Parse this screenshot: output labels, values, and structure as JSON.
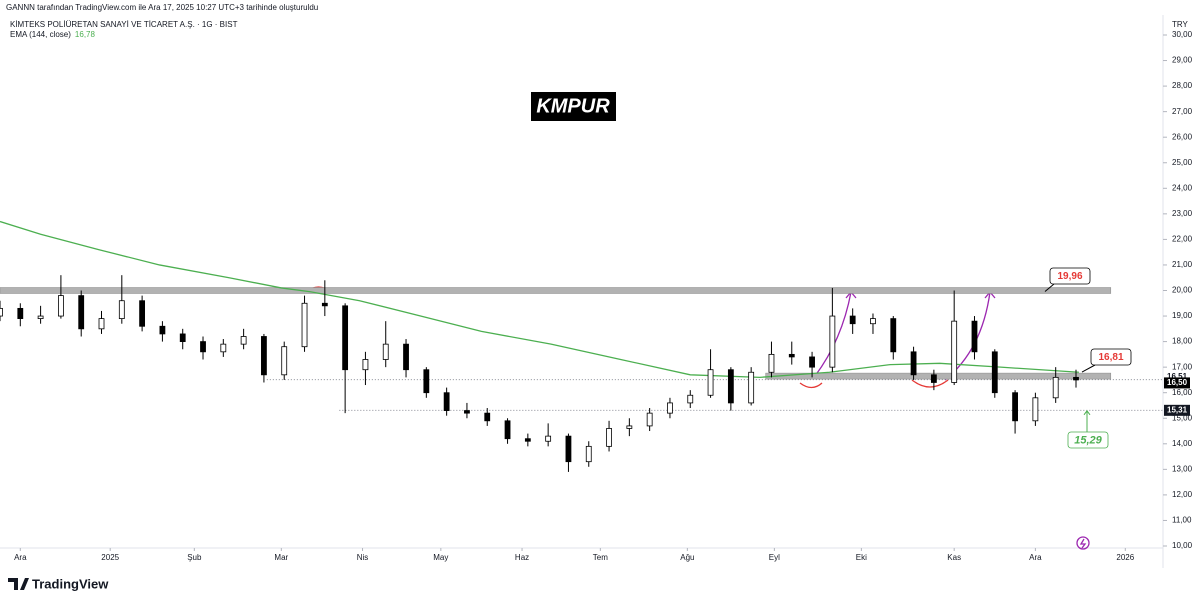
{
  "header": {
    "credit": "GANNN tarafından TradingView.com ile Ara 17, 2025 10:27 UTC+3 tarihinde oluşturuldu",
    "symbol": "KİMTEKS POLİÜRETAN SANAYİ VE TİCARET A.Ş. · 1G · BIST"
  },
  "footer": {
    "brand": "TradingView"
  },
  "chart_data": {
    "type": "candlestick",
    "title": "KMPUR",
    "currency": "TRY",
    "grid": false,
    "up_color": "#ffffff",
    "down_color": "#000000",
    "wick_color": "#000000",
    "xlim": [
      0,
      401
    ],
    "xticks": [
      {
        "value": 7,
        "label": "Ara"
      },
      {
        "value": 38,
        "label": "2025"
      },
      {
        "value": 67,
        "label": "Şub"
      },
      {
        "value": 97,
        "label": "Mar"
      },
      {
        "value": 125,
        "label": "Nis"
      },
      {
        "value": 152,
        "label": "May"
      },
      {
        "value": 180,
        "label": "Haz"
      },
      {
        "value": 207,
        "label": "Tem"
      },
      {
        "value": 237,
        "label": "Ağu"
      },
      {
        "value": 267,
        "label": "Eyl"
      },
      {
        "value": 297,
        "label": "Eki"
      },
      {
        "value": 329,
        "label": "Kas"
      },
      {
        "value": 357,
        "label": "Ara"
      },
      {
        "value": 388,
        "label": "2026"
      }
    ],
    "ylim": [
      10,
      30
    ],
    "yticks": [
      {
        "value": 10,
        "label": "10,00"
      },
      {
        "value": 11,
        "label": "11,00"
      },
      {
        "value": 12,
        "label": "12,00"
      },
      {
        "value": 13,
        "label": "13,00"
      },
      {
        "value": 14,
        "label": "14,00"
      },
      {
        "value": 15,
        "label": "15,00"
      },
      {
        "value": 16,
        "label": "16,00"
      },
      {
        "value": 17,
        "label": "17,00"
      },
      {
        "value": 18,
        "label": "18,00"
      },
      {
        "value": 19,
        "label": "19,00"
      },
      {
        "value": 20,
        "label": "20,00"
      },
      {
        "value": 21,
        "label": "21,00"
      },
      {
        "value": 22,
        "label": "22,00"
      },
      {
        "value": 23,
        "label": "23,00"
      },
      {
        "value": 24,
        "label": "24,00"
      },
      {
        "value": 25,
        "label": "25,00"
      },
      {
        "value": 26,
        "label": "26,00"
      },
      {
        "value": 27,
        "label": "27,00"
      },
      {
        "value": 28,
        "label": "28,00"
      },
      {
        "value": 29,
        "label": "29,00"
      },
      {
        "value": 30,
        "label": "30,00"
      }
    ],
    "x": [
      0,
      7,
      14,
      21,
      28,
      35,
      42,
      49,
      56,
      63,
      70,
      77,
      84,
      91,
      98,
      105,
      112,
      119,
      126,
      133,
      140,
      147,
      154,
      161,
      168,
      175,
      182,
      189,
      196,
      203,
      210,
      217,
      224,
      231,
      238,
      245,
      252,
      259,
      266,
      273,
      280,
      287,
      294,
      301,
      308,
      315,
      322,
      329,
      336,
      343,
      350,
      357,
      364,
      371
    ],
    "open": [
      19.0,
      19.3,
      18.9,
      19.0,
      19.8,
      18.5,
      18.9,
      19.6,
      18.6,
      18.3,
      18.0,
      17.6,
      17.9,
      18.2,
      16.7,
      17.8,
      19.5,
      19.4,
      16.9,
      17.3,
      17.9,
      16.9,
      16.0,
      15.3,
      15.2,
      14.9,
      14.2,
      14.1,
      14.3,
      13.3,
      13.9,
      14.6,
      14.7,
      15.2,
      15.6,
      15.9,
      16.9,
      15.6,
      16.8,
      17.5,
      17.4,
      17.0,
      19.0,
      18.7,
      18.9,
      17.6,
      16.7,
      16.4,
      18.8,
      17.6,
      16.0,
      14.9,
      15.8,
      16.6
    ],
    "high": [
      19.6,
      19.5,
      19.4,
      20.6,
      20.0,
      19.2,
      20.6,
      19.8,
      18.8,
      18.5,
      18.2,
      18.1,
      18.5,
      18.3,
      18.0,
      19.8,
      20.4,
      19.5,
      17.6,
      18.8,
      18.1,
      17.0,
      16.2,
      15.6,
      15.4,
      15.0,
      14.4,
      14.8,
      14.4,
      14.1,
      14.9,
      15.0,
      15.4,
      15.8,
      16.1,
      17.7,
      17.0,
      17.0,
      18.0,
      18.0,
      17.6,
      20.1,
      19.3,
      19.1,
      19.0,
      17.8,
      16.9,
      20.0,
      19.0,
      17.7,
      16.1,
      16.0,
      17.0,
      16.9
    ],
    "low": [
      18.8,
      18.6,
      18.7,
      18.9,
      18.2,
      18.3,
      18.7,
      18.4,
      18.0,
      17.7,
      17.3,
      17.4,
      17.7,
      16.4,
      16.5,
      17.6,
      19.0,
      15.2,
      16.3,
      17.0,
      16.6,
      15.8,
      15.1,
      15.0,
      14.7,
      14.0,
      13.9,
      13.9,
      12.9,
      13.1,
      13.7,
      14.3,
      14.5,
      15.0,
      15.4,
      15.8,
      15.3,
      15.5,
      16.6,
      17.1,
      16.6,
      16.8,
      18.3,
      18.3,
      17.3,
      16.5,
      16.1,
      16.3,
      17.3,
      15.8,
      14.4,
      14.7,
      15.6,
      16.2
    ],
    "close": [
      19.3,
      18.9,
      19.0,
      19.8,
      18.5,
      18.9,
      19.6,
      18.6,
      18.3,
      18.0,
      17.6,
      17.9,
      18.2,
      16.7,
      17.8,
      19.5,
      19.4,
      16.9,
      17.3,
      17.9,
      16.9,
      16.0,
      15.3,
      15.2,
      14.9,
      14.2,
      14.1,
      14.3,
      13.3,
      13.9,
      14.6,
      14.7,
      15.2,
      15.6,
      15.9,
      16.9,
      15.6,
      16.8,
      17.5,
      17.4,
      17.0,
      19.0,
      18.7,
      18.9,
      17.6,
      16.7,
      16.4,
      18.8,
      17.6,
      16.0,
      14.9,
      15.8,
      16.6,
      16.5
    ],
    "ema": {
      "name": "EMA (144, close)",
      "last_label": "16,78",
      "color": "#4caf50",
      "x": [
        0,
        14,
        34,
        55,
        79,
        97,
        107,
        124,
        145,
        166,
        190,
        214,
        238,
        262,
        286,
        307,
        324,
        345,
        372
      ],
      "values": [
        22.7,
        22.2,
        21.6,
        21.0,
        20.5,
        20.1,
        19.95,
        19.6,
        19.0,
        18.4,
        17.9,
        17.3,
        16.7,
        16.6,
        16.8,
        17.1,
        17.15,
        17.0,
        16.8
      ]
    },
    "bands": [
      {
        "value": 20.0,
        "x": [
          0,
          383
        ]
      },
      {
        "value": 16.65,
        "x": [
          264,
          383
        ]
      }
    ],
    "dotted_lines": [
      {
        "value": 16.51,
        "x": [
          92,
          401
        ]
      },
      {
        "value": 15.31,
        "x": [
          117,
          401
        ]
      }
    ],
    "price_labels": [
      {
        "value": 16.51,
        "label": "16,51"
      },
      {
        "value": 16.5,
        "label": "16,50"
      },
      {
        "value": 15.31,
        "label": "15,31"
      }
    ],
    "annotations": [
      {
        "value": 19.96,
        "label": "19,96",
        "color": "#e53935"
      },
      {
        "value": 16.81,
        "label": "16,81",
        "color": "#e53935"
      },
      {
        "value": 15.29,
        "label": "15,29",
        "color": "#4caf50"
      }
    ]
  }
}
